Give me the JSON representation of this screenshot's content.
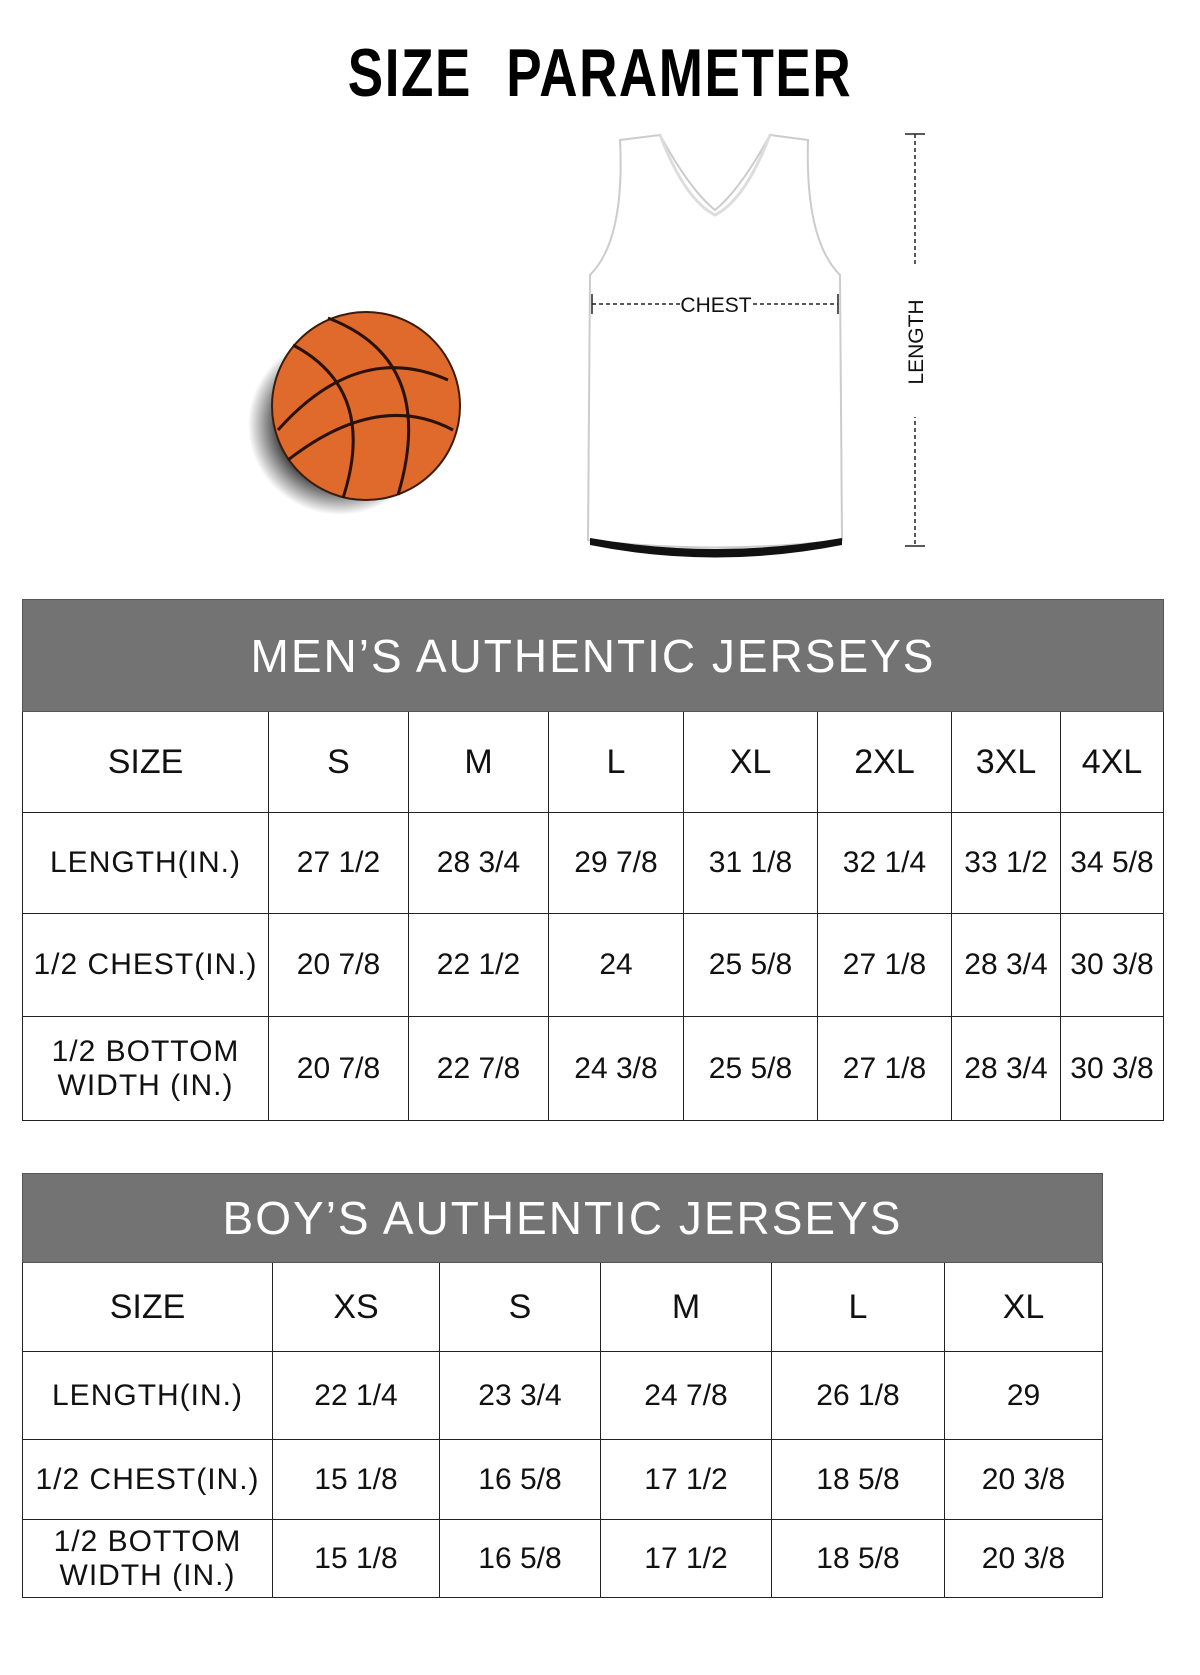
{
  "title": {
    "word1": "SIZE",
    "word2": "PARAMETER"
  },
  "diagram": {
    "chest_label": "CHEST",
    "length_label": "LENGTH",
    "ball_color": "#e06a2c"
  },
  "colors": {
    "table_header_bg": "#737373"
  },
  "men": {
    "title": "MEN’S AUTHENTIC JERSEYS",
    "size_label": "SIZE",
    "sizes": [
      "S",
      "M",
      "L",
      "XL",
      "2XL",
      "3XL",
      "4XL"
    ],
    "rows": [
      {
        "label": "LENGTH(IN.)",
        "values": [
          "27 1/2",
          "28 3/4",
          "29 7/8",
          "31 1/8",
          "32 1/4",
          "33 1/2",
          "34 5/8"
        ]
      },
      {
        "label": "1/2 CHEST(IN.)",
        "values": [
          "20 7/8",
          "22 1/2",
          "24",
          "25 5/8",
          "27 1/8",
          "28 3/4",
          "30 3/8"
        ]
      },
      {
        "label": "1/2 BOTTOM WIDTH (IN.)",
        "values": [
          "20 7/8",
          "22 7/8",
          "24 3/8",
          "25 5/8",
          "27 1/8",
          "28 3/4",
          "30 3/8"
        ]
      }
    ]
  },
  "boy": {
    "title": "BOY’S AUTHENTIC JERSEYS",
    "size_label": "SIZE",
    "sizes": [
      "XS",
      "S",
      "M",
      "L",
      "XL"
    ],
    "rows": [
      {
        "label": "LENGTH(IN.)",
        "values": [
          "22 1/4",
          "23 3/4",
          "24 7/8",
          "26 1/8",
          "29"
        ]
      },
      {
        "label": "1/2 CHEST(IN.)",
        "values": [
          "15 1/8",
          "16 5/8",
          "17 1/2",
          "18 5/8",
          "20 3/8"
        ]
      },
      {
        "label": "1/2 BOTTOM WIDTH (IN.)",
        "values": [
          "15 1/8",
          "16 5/8",
          "17 1/2",
          "18 5/8",
          "20 3/8"
        ]
      }
    ]
  }
}
